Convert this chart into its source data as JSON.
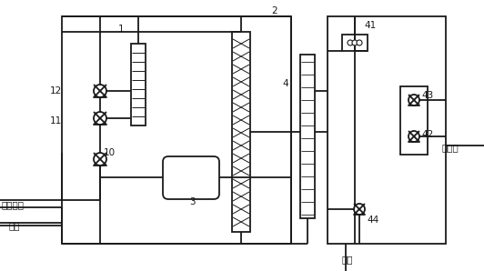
{
  "lc": "#1a1a1a",
  "lw": 1.3,
  "fig_w": 5.32,
  "fig_h": 2.98,
  "dpi": 100,
  "xlim": [
    0,
    532
  ],
  "ylim": [
    0,
    298
  ]
}
